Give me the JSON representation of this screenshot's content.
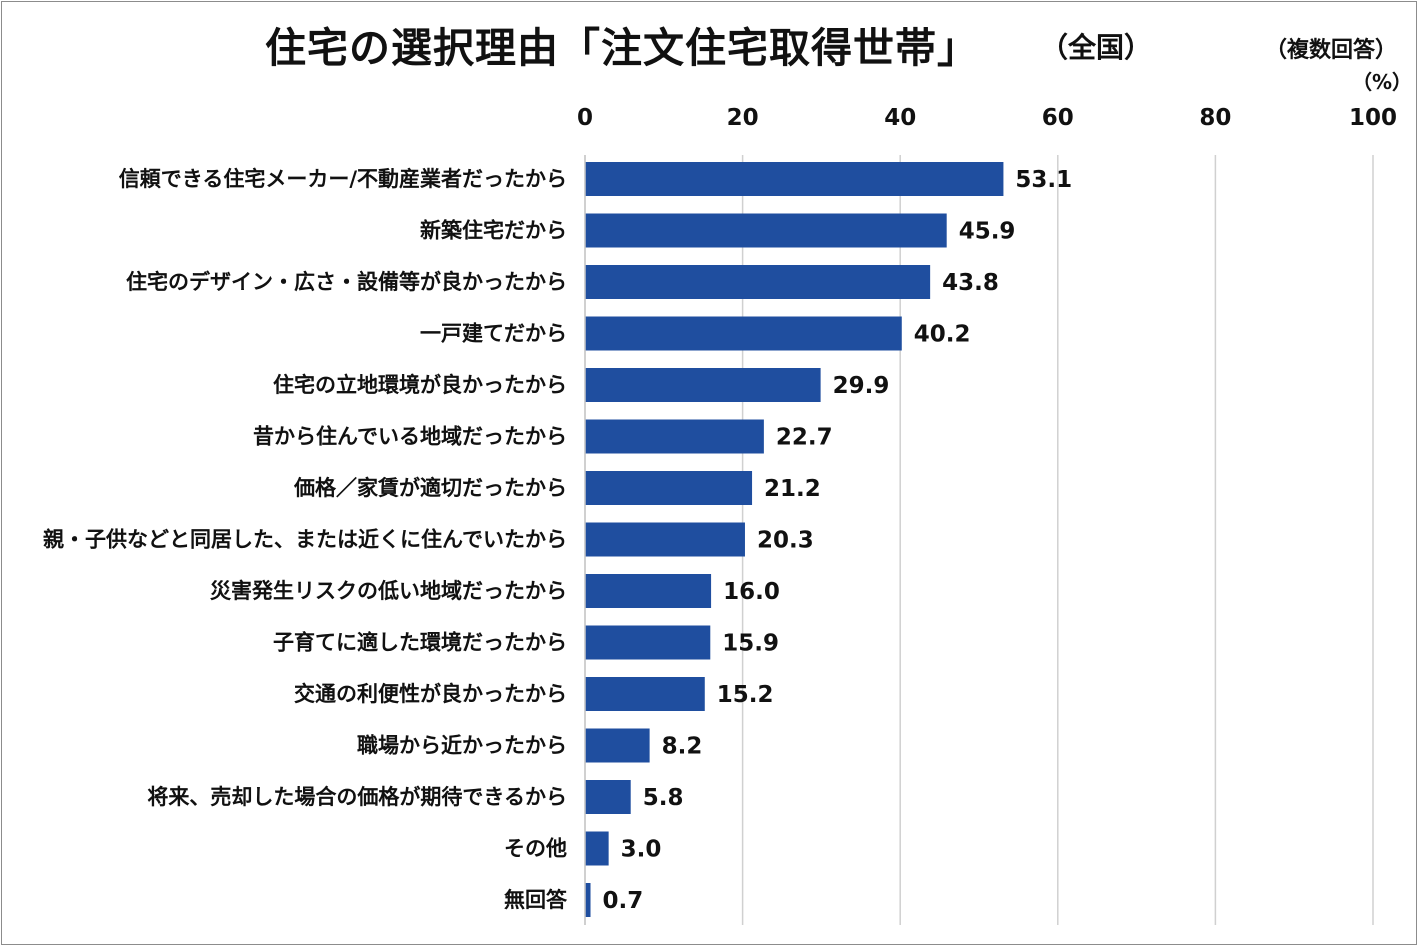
{
  "header": {
    "title": "住宅の選択理由「注文住宅取得世帯」",
    "scope": "（全国）",
    "note": "（複数回答）",
    "unit": "（%）"
  },
  "chart_data": {
    "type": "bar",
    "orientation": "horizontal",
    "title": "住宅の選択理由「注文住宅取得世帯」",
    "xlim": [
      0,
      100
    ],
    "ticks": [
      "0",
      "20",
      "40",
      "60",
      "80",
      "100"
    ],
    "tick_values": [
      0,
      20,
      40,
      60,
      80,
      100
    ],
    "grid": true,
    "bar_color": "#1f4e9f",
    "categories": [
      "信頼できる住宅メーカー/不動産業者だったから",
      "新築住宅だから",
      "住宅のデザイン・広さ・設備等が良かったから",
      "一戸建てだから",
      "住宅の立地環境が良かったから",
      "昔から住んでいる地域だったから",
      "価格／家賃が適切だったから",
      "親・子供などと同居した、または近くに住んでいたから",
      "災害発生リスクの低い地域だったから",
      "子育てに適した環境だったから",
      "交通の利便性が良かったから",
      "職場から近かったから",
      "将来、売却した場合の価格が期待できるから",
      "その他",
      "無回答"
    ],
    "values": [
      53.1,
      45.9,
      43.8,
      40.2,
      29.9,
      22.7,
      21.2,
      20.3,
      16.0,
      15.9,
      15.2,
      8.2,
      5.8,
      3.0,
      0.7
    ],
    "value_labels": [
      "53.1",
      "45.9",
      "43.8",
      "40.2",
      "29.9",
      "22.7",
      "21.2",
      "20.3",
      "16.0",
      "15.9",
      "15.2",
      "8.2",
      "5.8",
      "3.0",
      "0.7"
    ]
  }
}
